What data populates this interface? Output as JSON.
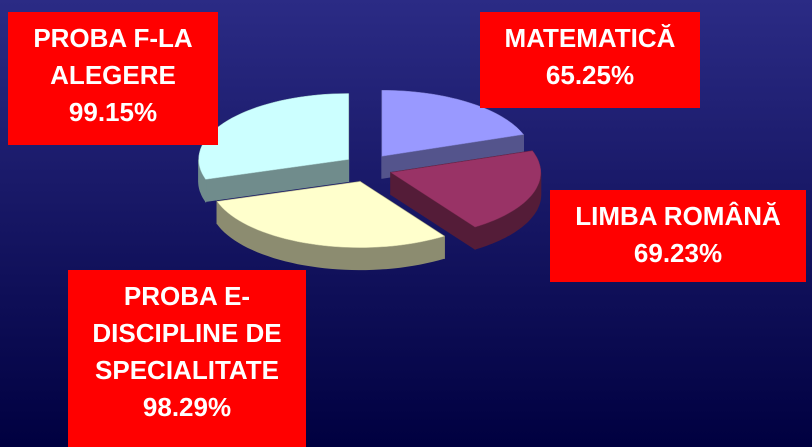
{
  "chart_data": {
    "type": "pie",
    "categories": [
      "MATEMATICĂ",
      "LIMBA ROMÂNĂ",
      "PROBA E-DISCIPLINE DE SPECIALITATE",
      "PROBA F-LA ALEGERE"
    ],
    "values": [
      65.25,
      69.23,
      98.29,
      99.15
    ],
    "value_labels": [
      "65.25%",
      "69.23%",
      "98.29%",
      "99.15%"
    ],
    "colors": [
      "#9999ff",
      "#993366",
      "#ffffcc",
      "#ccffff"
    ]
  }
}
